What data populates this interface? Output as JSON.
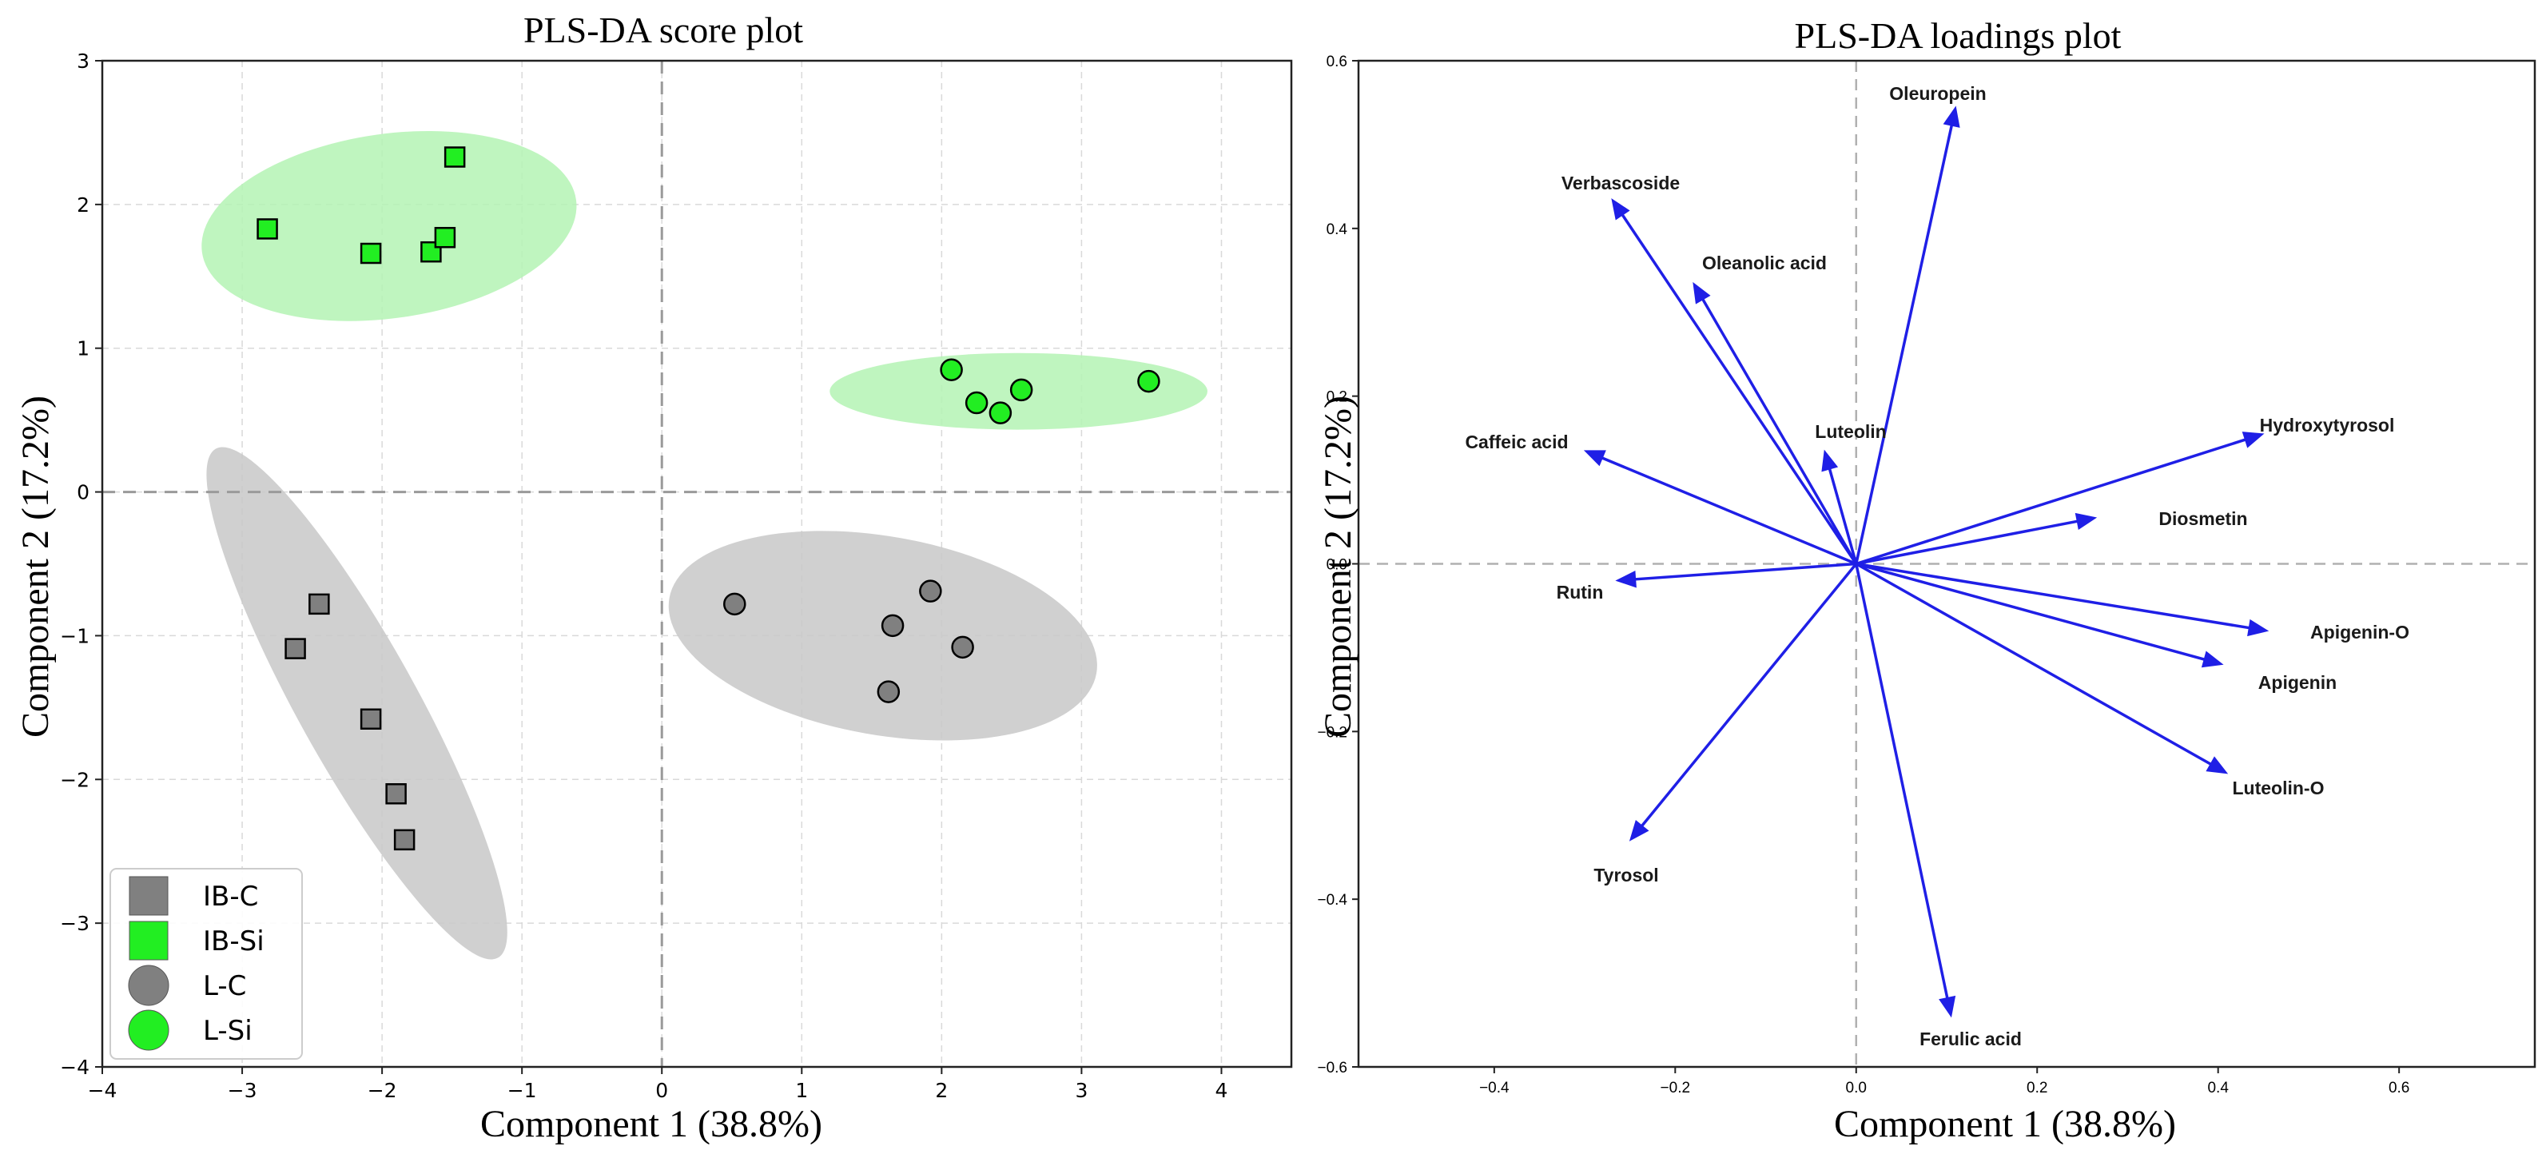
{
  "colors": {
    "control": "#808080",
    "control_ellipse": "#c8c8c8",
    "si": "#22ee22",
    "si_ellipse": "#b4f3b4",
    "arrow": "#1f1fe6"
  },
  "chart_data": [
    {
      "type": "scatter",
      "title": "PLS-DA score plot",
      "xlabel": "Component 1 (38.8%)",
      "ylabel": "Component 2 (17.2%)",
      "xlim": [
        -4,
        4.5
      ],
      "ylim": [
        -4,
        3
      ],
      "xticks": [
        -4,
        -3,
        -2,
        -1,
        0,
        1,
        2,
        3,
        4
      ],
      "yticks": [
        -4,
        -3,
        -2,
        -1,
        0,
        1,
        2,
        3
      ],
      "tick_labels_x": [
        "−4",
        "−3",
        "−2",
        "−1",
        "0",
        "1",
        "2",
        "3",
        "4"
      ],
      "tick_labels_y": [
        "−4",
        "−3",
        "−2",
        "−1",
        "0",
        "1",
        "2",
        "3"
      ],
      "grid": true,
      "legend_position": "lower-left",
      "series": [
        {
          "name": "IB-C",
          "marker": "square",
          "color": "#808080",
          "points": [
            [
              -2.45,
              -0.78
            ],
            [
              -2.62,
              -1.09
            ],
            [
              -2.08,
              -1.58
            ],
            [
              -1.9,
              -2.1
            ],
            [
              -1.84,
              -2.42
            ]
          ]
        },
        {
          "name": "IB-Si",
          "marker": "square",
          "color": "#22ee22",
          "points": [
            [
              -2.82,
              1.83
            ],
            [
              -2.08,
              1.66
            ],
            [
              -1.65,
              1.67
            ],
            [
              -1.55,
              1.77
            ],
            [
              -1.48,
              2.33
            ]
          ]
        },
        {
          "name": "L-C",
          "marker": "circle",
          "color": "#808080",
          "points": [
            [
              0.52,
              -0.78
            ],
            [
              1.65,
              -0.93
            ],
            [
              1.92,
              -0.69
            ],
            [
              2.15,
              -1.08
            ],
            [
              1.62,
              -1.39
            ]
          ]
        },
        {
          "name": "L-Si",
          "marker": "circle",
          "color": "#22ee22",
          "points": [
            [
              2.07,
              0.85
            ],
            [
              2.25,
              0.62
            ],
            [
              2.42,
              0.55
            ],
            [
              2.57,
              0.71
            ],
            [
              3.48,
              0.77
            ]
          ]
        }
      ],
      "ellipses": [
        {
          "group": "IB-Si",
          "center": [
            -1.95,
            1.85
          ],
          "radii": [
            1.35,
            0.65
          ],
          "angle_deg": 8,
          "color": "#b4f3b4"
        },
        {
          "group": "L-Si",
          "center": [
            2.55,
            0.7
          ],
          "radii": [
            1.35,
            0.27
          ],
          "angle_deg": 0,
          "color": "#b4f3b4"
        },
        {
          "group": "L-C",
          "center": [
            1.58,
            -1.0
          ],
          "radii": [
            1.55,
            0.7
          ],
          "angle_deg": -10,
          "color": "#c8c8c8"
        },
        {
          "group": "IB-C",
          "center": [
            -2.18,
            -1.47
          ],
          "radii": [
            2.08,
            0.42
          ],
          "angle_deg": -61,
          "color": "#c8c8c8"
        }
      ]
    },
    {
      "type": "biplot-loadings",
      "title": "PLS-DA loadings  plot",
      "xlabel": "Component 1 (38.8%)",
      "ylabel": "Component 2 (17.2%)",
      "xlim": [
        -0.55,
        0.75
      ],
      "ylim": [
        -0.6,
        0.6
      ],
      "xticks": [
        -0.4,
        -0.2,
        0.0,
        0.2,
        0.4,
        0.6
      ],
      "yticks": [
        -0.6,
        -0.4,
        -0.2,
        0.0,
        0.2,
        0.4,
        0.6
      ],
      "tick_labels_x": [
        "−0.4",
        "−0.2",
        "0.0",
        "0.2",
        "0.4",
        "0.6"
      ],
      "tick_labels_y": [
        "−0.6",
        "−0.4",
        "−0.2",
        "0.0",
        "0.2",
        "0.4",
        "0.6"
      ],
      "grid": false,
      "loadings": [
        {
          "name": "Oleuropein",
          "x": 0.11,
          "y": 0.545
        },
        {
          "name": "Verbascoside",
          "x": -0.27,
          "y": 0.435
        },
        {
          "name": "Oleanolic acid",
          "x": -0.18,
          "y": 0.335
        },
        {
          "name": "Luteolin",
          "x": -0.035,
          "y": 0.135
        },
        {
          "name": "Hydroxytyrosol",
          "x": 0.45,
          "y": 0.155
        },
        {
          "name": "Caffeic acid",
          "x": -0.3,
          "y": 0.135
        },
        {
          "name": "Diosmetin",
          "x": 0.265,
          "y": 0.055
        },
        {
          "name": "Rutin",
          "x": -0.265,
          "y": -0.02
        },
        {
          "name": "Apigenin-O",
          "x": 0.455,
          "y": -0.08
        },
        {
          "name": "Apigenin",
          "x": 0.405,
          "y": -0.12
        },
        {
          "name": "Luteolin-O",
          "x": 0.41,
          "y": -0.25
        },
        {
          "name": "Tyrosol",
          "x": -0.25,
          "y": -0.33
        },
        {
          "name": "Ferulic acid",
          "x": 0.105,
          "y": -0.54
        }
      ]
    }
  ]
}
